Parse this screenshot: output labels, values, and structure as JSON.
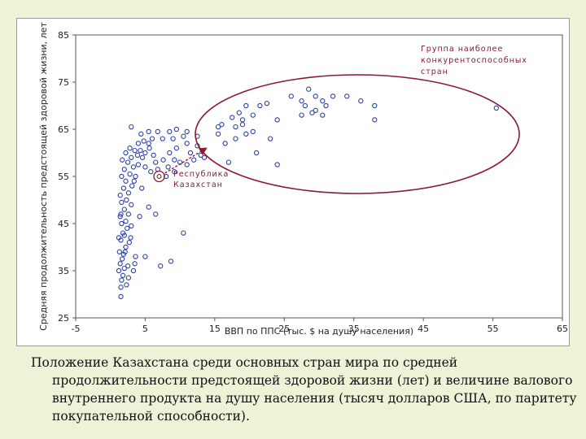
{
  "chart_data": {
    "type": "scatter",
    "title": "",
    "xlabel": "ВВП по ППС (тыс. $ на душу населения)",
    "ylabel": "Средняя продолжительность предстоящей здоровой жизни, лет",
    "xlim": [
      -5,
      65
    ],
    "ylim": [
      25,
      85
    ],
    "xticks": [
      "-5",
      "5",
      "15",
      "25",
      "35",
      "45",
      "55",
      "65"
    ],
    "yticks": [
      "25",
      "35",
      "45",
      "55",
      "65",
      "75",
      "85"
    ],
    "grid": false,
    "marker_color": "#2a3fa8",
    "highlight_color": "#8b1a2e",
    "annotations": {
      "group_label": "Группа наиболее\nконкурентоспособных\nстран",
      "kz_label": "Республика\nКазахстан"
    },
    "highlight_point": [
      7.0,
      55.0
    ],
    "series": [
      {
        "points": [
          [
            1.5,
            29.5
          ],
          [
            1.5,
            31.5
          ],
          [
            1.6,
            33
          ],
          [
            1.8,
            34
          ],
          [
            2.0,
            35.5
          ],
          [
            1.2,
            35
          ],
          [
            1.4,
            36.5
          ],
          [
            2.3,
            32
          ],
          [
            2.6,
            33.5
          ],
          [
            1.7,
            37.5
          ],
          [
            1.3,
            39
          ],
          [
            1.9,
            38.5
          ],
          [
            2.2,
            40
          ],
          [
            1.5,
            41.5
          ],
          [
            2.0,
            42.5
          ],
          [
            2.7,
            41
          ],
          [
            1.2,
            42
          ],
          [
            1.8,
            43
          ],
          [
            2.4,
            44
          ],
          [
            1.6,
            45
          ],
          [
            2.2,
            45.5
          ],
          [
            3.0,
            44.5
          ],
          [
            1.4,
            46.5
          ],
          [
            2.6,
            47
          ],
          [
            2.0,
            48
          ],
          [
            1.6,
            49.5
          ],
          [
            3.0,
            49
          ],
          [
            2.3,
            50
          ],
          [
            1.4,
            51
          ],
          [
            2.6,
            51.5
          ],
          [
            1.9,
            52.5
          ],
          [
            3.1,
            53
          ],
          [
            2.2,
            54
          ],
          [
            1.6,
            55
          ],
          [
            2.8,
            55.5
          ],
          [
            3.6,
            55
          ],
          [
            2.0,
            56.5
          ],
          [
            3.3,
            57
          ],
          [
            4.0,
            57.5
          ],
          [
            2.5,
            58
          ],
          [
            1.7,
            58.5
          ],
          [
            3.0,
            59
          ],
          [
            3.9,
            59.5
          ],
          [
            4.6,
            59
          ],
          [
            2.2,
            60
          ],
          [
            3.5,
            60.5
          ],
          [
            4.3,
            60.5
          ],
          [
            5.0,
            60
          ],
          [
            2.8,
            61
          ],
          [
            5.6,
            61
          ],
          [
            6.2,
            59.5
          ],
          [
            4.0,
            62
          ],
          [
            4.8,
            62.5
          ],
          [
            5.5,
            62
          ],
          [
            6.0,
            63
          ],
          [
            4.4,
            64
          ],
          [
            6.8,
            64.5
          ],
          [
            3.0,
            65.5
          ],
          [
            5.5,
            64.5
          ],
          [
            7.5,
            63
          ],
          [
            6.5,
            58
          ],
          [
            7.6,
            58.5
          ],
          [
            5.0,
            57
          ],
          [
            5.8,
            56
          ],
          [
            6.8,
            56.5
          ],
          [
            8.3,
            57
          ],
          [
            8.0,
            55
          ],
          [
            9.2,
            56
          ],
          [
            10.0,
            58
          ],
          [
            11.0,
            57.5
          ],
          [
            8.5,
            60
          ],
          [
            9.5,
            61
          ],
          [
            11.5,
            60
          ],
          [
            12.5,
            61.5
          ],
          [
            11.0,
            62
          ],
          [
            9.0,
            63
          ],
          [
            10.5,
            63.5
          ],
          [
            12.5,
            63.5
          ],
          [
            9.5,
            65
          ],
          [
            8.5,
            64.5
          ],
          [
            9.2,
            58.5
          ],
          [
            12.0,
            58.5
          ],
          [
            13.0,
            59.5
          ],
          [
            11.0,
            64.5
          ],
          [
            3.6,
            38
          ],
          [
            5.0,
            38
          ],
          [
            2.5,
            36
          ],
          [
            3.5,
            36.5
          ],
          [
            4.2,
            46.5
          ],
          [
            6.5,
            47
          ],
          [
            5.5,
            48.5
          ],
          [
            3.4,
            54
          ],
          [
            4.5,
            52.5
          ],
          [
            10.5,
            43
          ],
          [
            8.7,
            37
          ],
          [
            7.2,
            36
          ],
          [
            3.3,
            35
          ],
          [
            2.9,
            42
          ],
          [
            2.1,
            39
          ],
          [
            1.5,
            47
          ],
          [
            15.5,
            65.5
          ],
          [
            16.0,
            66
          ],
          [
            15.5,
            64
          ],
          [
            16.5,
            62
          ],
          [
            18.0,
            65.5
          ],
          [
            19.0,
            66
          ],
          [
            18.0,
            63
          ],
          [
            19.5,
            64
          ],
          [
            19.0,
            67
          ],
          [
            20.5,
            64.5
          ],
          [
            17.5,
            67.5
          ],
          [
            18.5,
            68.5
          ],
          [
            19.5,
            70
          ],
          [
            20.5,
            68
          ],
          [
            21.5,
            70
          ],
          [
            22.5,
            70.5
          ],
          [
            21.0,
            60
          ],
          [
            17.0,
            58
          ],
          [
            23.0,
            63
          ],
          [
            24.0,
            67
          ],
          [
            26.0,
            72
          ],
          [
            27.5,
            71
          ],
          [
            28.5,
            73.5
          ],
          [
            29.5,
            72
          ],
          [
            28.0,
            70
          ],
          [
            29.5,
            69
          ],
          [
            31.0,
            70
          ],
          [
            30.5,
            71
          ],
          [
            32.0,
            72
          ],
          [
            27.5,
            68
          ],
          [
            29.0,
            68.5
          ],
          [
            30.5,
            68
          ],
          [
            34.0,
            72
          ],
          [
            36.0,
            71
          ],
          [
            38.0,
            70
          ],
          [
            38.0,
            67
          ],
          [
            55.5,
            69.5
          ],
          [
            24.0,
            57.5
          ],
          [
            13.5,
            59
          ]
        ]
      }
    ]
  },
  "caption": "Положение Казахстана среди основных стран мира по средней продолжительности предстоящей здоровой жизни (лет) и величине валового внутреннего продукта на душу населения (тысяч долларов США, по паритету покупательной способности)."
}
